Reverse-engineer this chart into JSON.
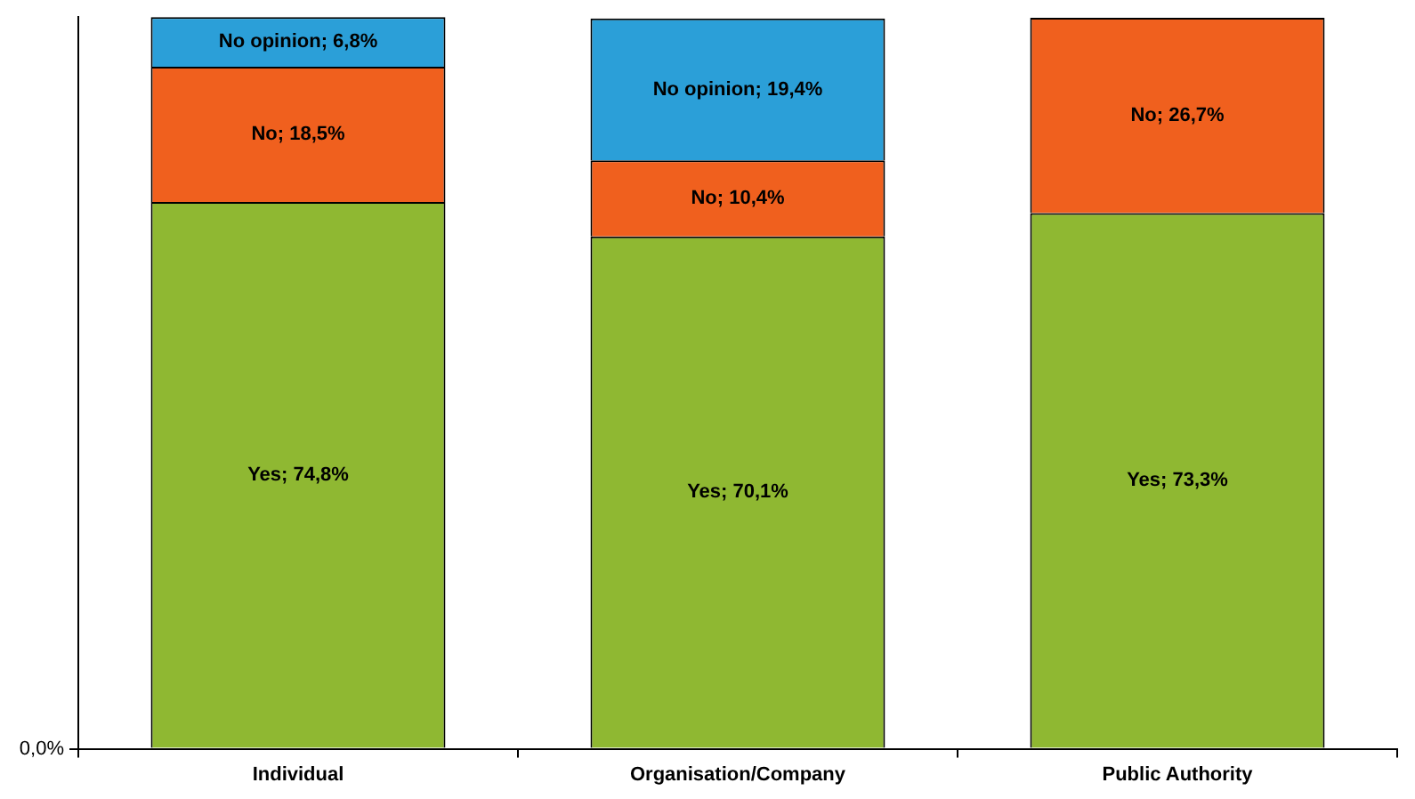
{
  "chart_data": {
    "type": "bar",
    "stacked": true,
    "categories": [
      "Individual",
      "Organisation/Company",
      "Public Authority"
    ],
    "series": [
      {
        "color": "#8fb832",
        "values": [
          74.8,
          70.1,
          73.3
        ],
        "value_labels": [
          "Yes; 74,8%",
          "Yes; 70,1%",
          "Yes; 73,3%"
        ]
      },
      {
        "color": "#f0601e",
        "values": [
          18.5,
          10.4,
          26.7
        ],
        "value_labels": [
          "No; 18,5%",
          "No; 10,4%",
          "No; 26,7%"
        ]
      },
      {
        "color": "#2b9fd8",
        "values": [
          6.8,
          19.4,
          null
        ],
        "value_labels": [
          "No opinion; 6,8%",
          "No opinion; 19,4%",
          null
        ]
      }
    ],
    "annotations": [
      "0,0%"
    ],
    "grid": false,
    "legend": false
  }
}
